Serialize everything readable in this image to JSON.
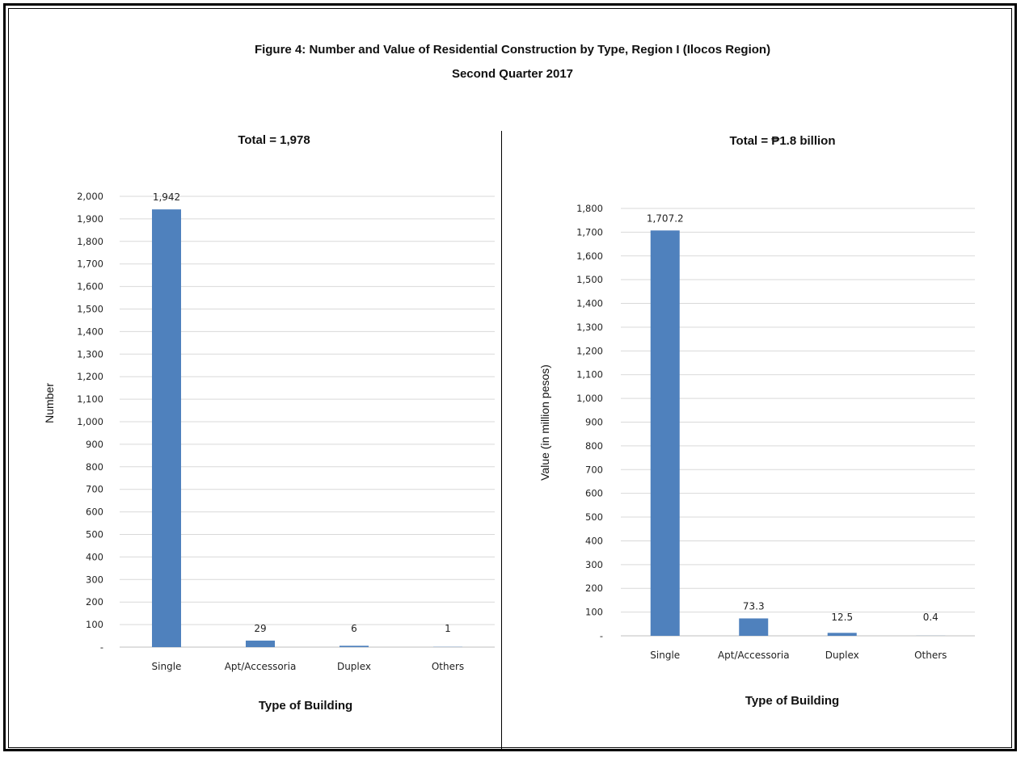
{
  "figure": {
    "title_line1": "Figure 4:  Number and Value of Residential Construction by Type, Region I (Ilocos Region)",
    "title_line2": "Second Quarter 2017"
  },
  "chart_data": [
    {
      "type": "bar",
      "title": "Total = 1,978",
      "xlabel": "Type of Building",
      "ylabel": "Number",
      "categories": [
        "Single",
        "Apt/Accessoria",
        "Duplex",
        "Others"
      ],
      "values": [
        1942,
        29,
        6,
        1
      ],
      "value_labels": [
        "1,942",
        "29",
        "6",
        "1"
      ],
      "ylim": [
        0,
        2000
      ],
      "yticks": [
        "-",
        "100",
        "200",
        "300",
        "400",
        "500",
        "600",
        "700",
        "800",
        "900",
        "1,000",
        "1,100",
        "1,200",
        "1,300",
        "1,400",
        "1,500",
        "1,600",
        "1,700",
        "1,800",
        "1,900",
        "2,000"
      ],
      "grid": true,
      "bar_color": "#4f81bd"
    },
    {
      "type": "bar",
      "title": "Total = ₱1.8 billion",
      "xlabel": "Type of Building",
      "ylabel": "Value (in million pesos)",
      "categories": [
        "Single",
        "Apt/Accessoria",
        "Duplex",
        "Others"
      ],
      "values": [
        1707.2,
        73.3,
        12.5,
        0.4
      ],
      "value_labels": [
        "1,707.2",
        "73.3",
        "12.5",
        "0.4"
      ],
      "ylim": [
        0,
        1800
      ],
      "yticks": [
        "-",
        "100",
        "200",
        "300",
        "400",
        "500",
        "600",
        "700",
        "800",
        "900",
        "1,000",
        "1,100",
        "1,200",
        "1,300",
        "1,400",
        "1,500",
        "1,600",
        "1,700",
        "1,800"
      ],
      "grid": true,
      "bar_color": "#4f81bd"
    }
  ]
}
